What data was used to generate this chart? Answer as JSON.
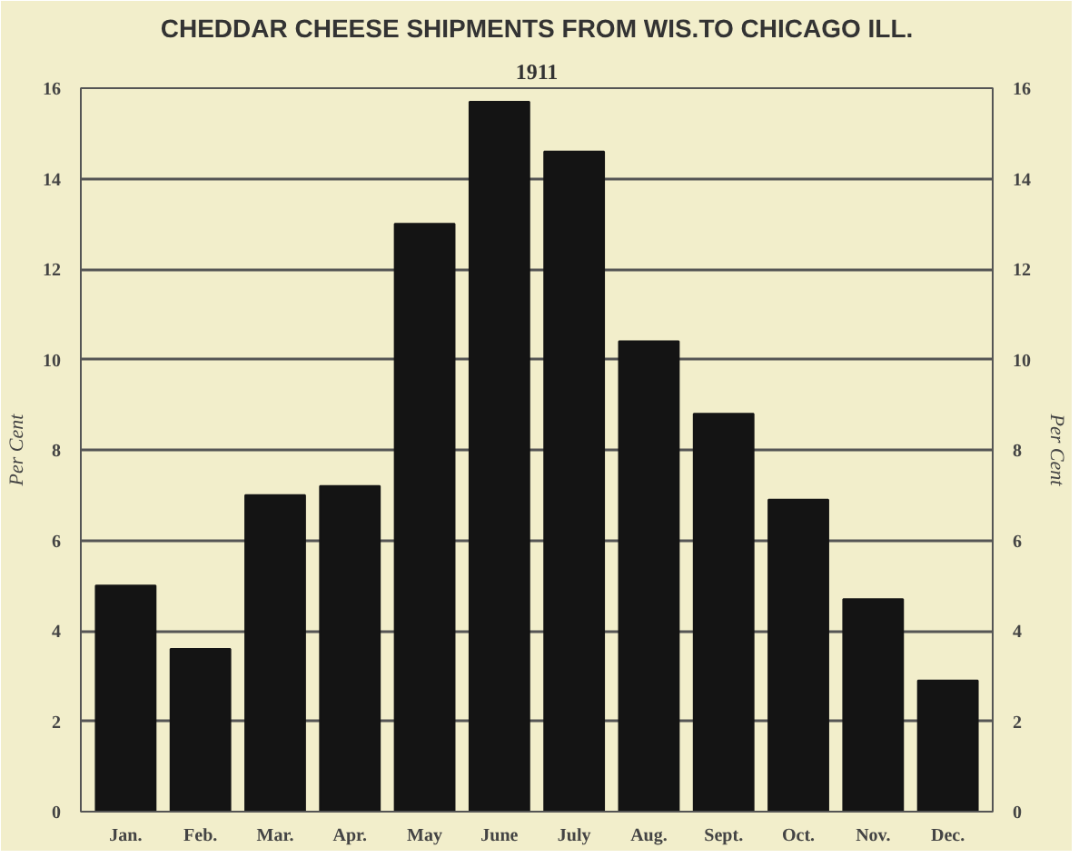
{
  "chart_data": {
    "type": "bar",
    "title": "CHEDDAR CHEESE SHIPMENTS FROM WIS.TO CHICAGO ILL.",
    "subtitle": "1911",
    "ylabel": "Per Cent",
    "y2label": "Per Cent",
    "categories": [
      "Jan.",
      "Feb.",
      "Mar.",
      "Apr.",
      "May",
      "June",
      "July",
      "Aug.",
      "Sept.",
      "Oct.",
      "Nov.",
      "Dec."
    ],
    "values": [
      5.0,
      3.6,
      7.0,
      7.2,
      13.0,
      15.7,
      14.6,
      10.4,
      8.8,
      6.9,
      4.7,
      2.9
    ],
    "color": "#141414",
    "ylim": [
      0,
      16
    ],
    "yticks": [
      0,
      2,
      4,
      6,
      8,
      10,
      12,
      14,
      16
    ],
    "y2lim": [
      0,
      16
    ],
    "y2ticks": [
      0,
      2,
      4,
      6,
      8,
      10,
      12,
      14,
      16
    ],
    "grid": "y"
  }
}
